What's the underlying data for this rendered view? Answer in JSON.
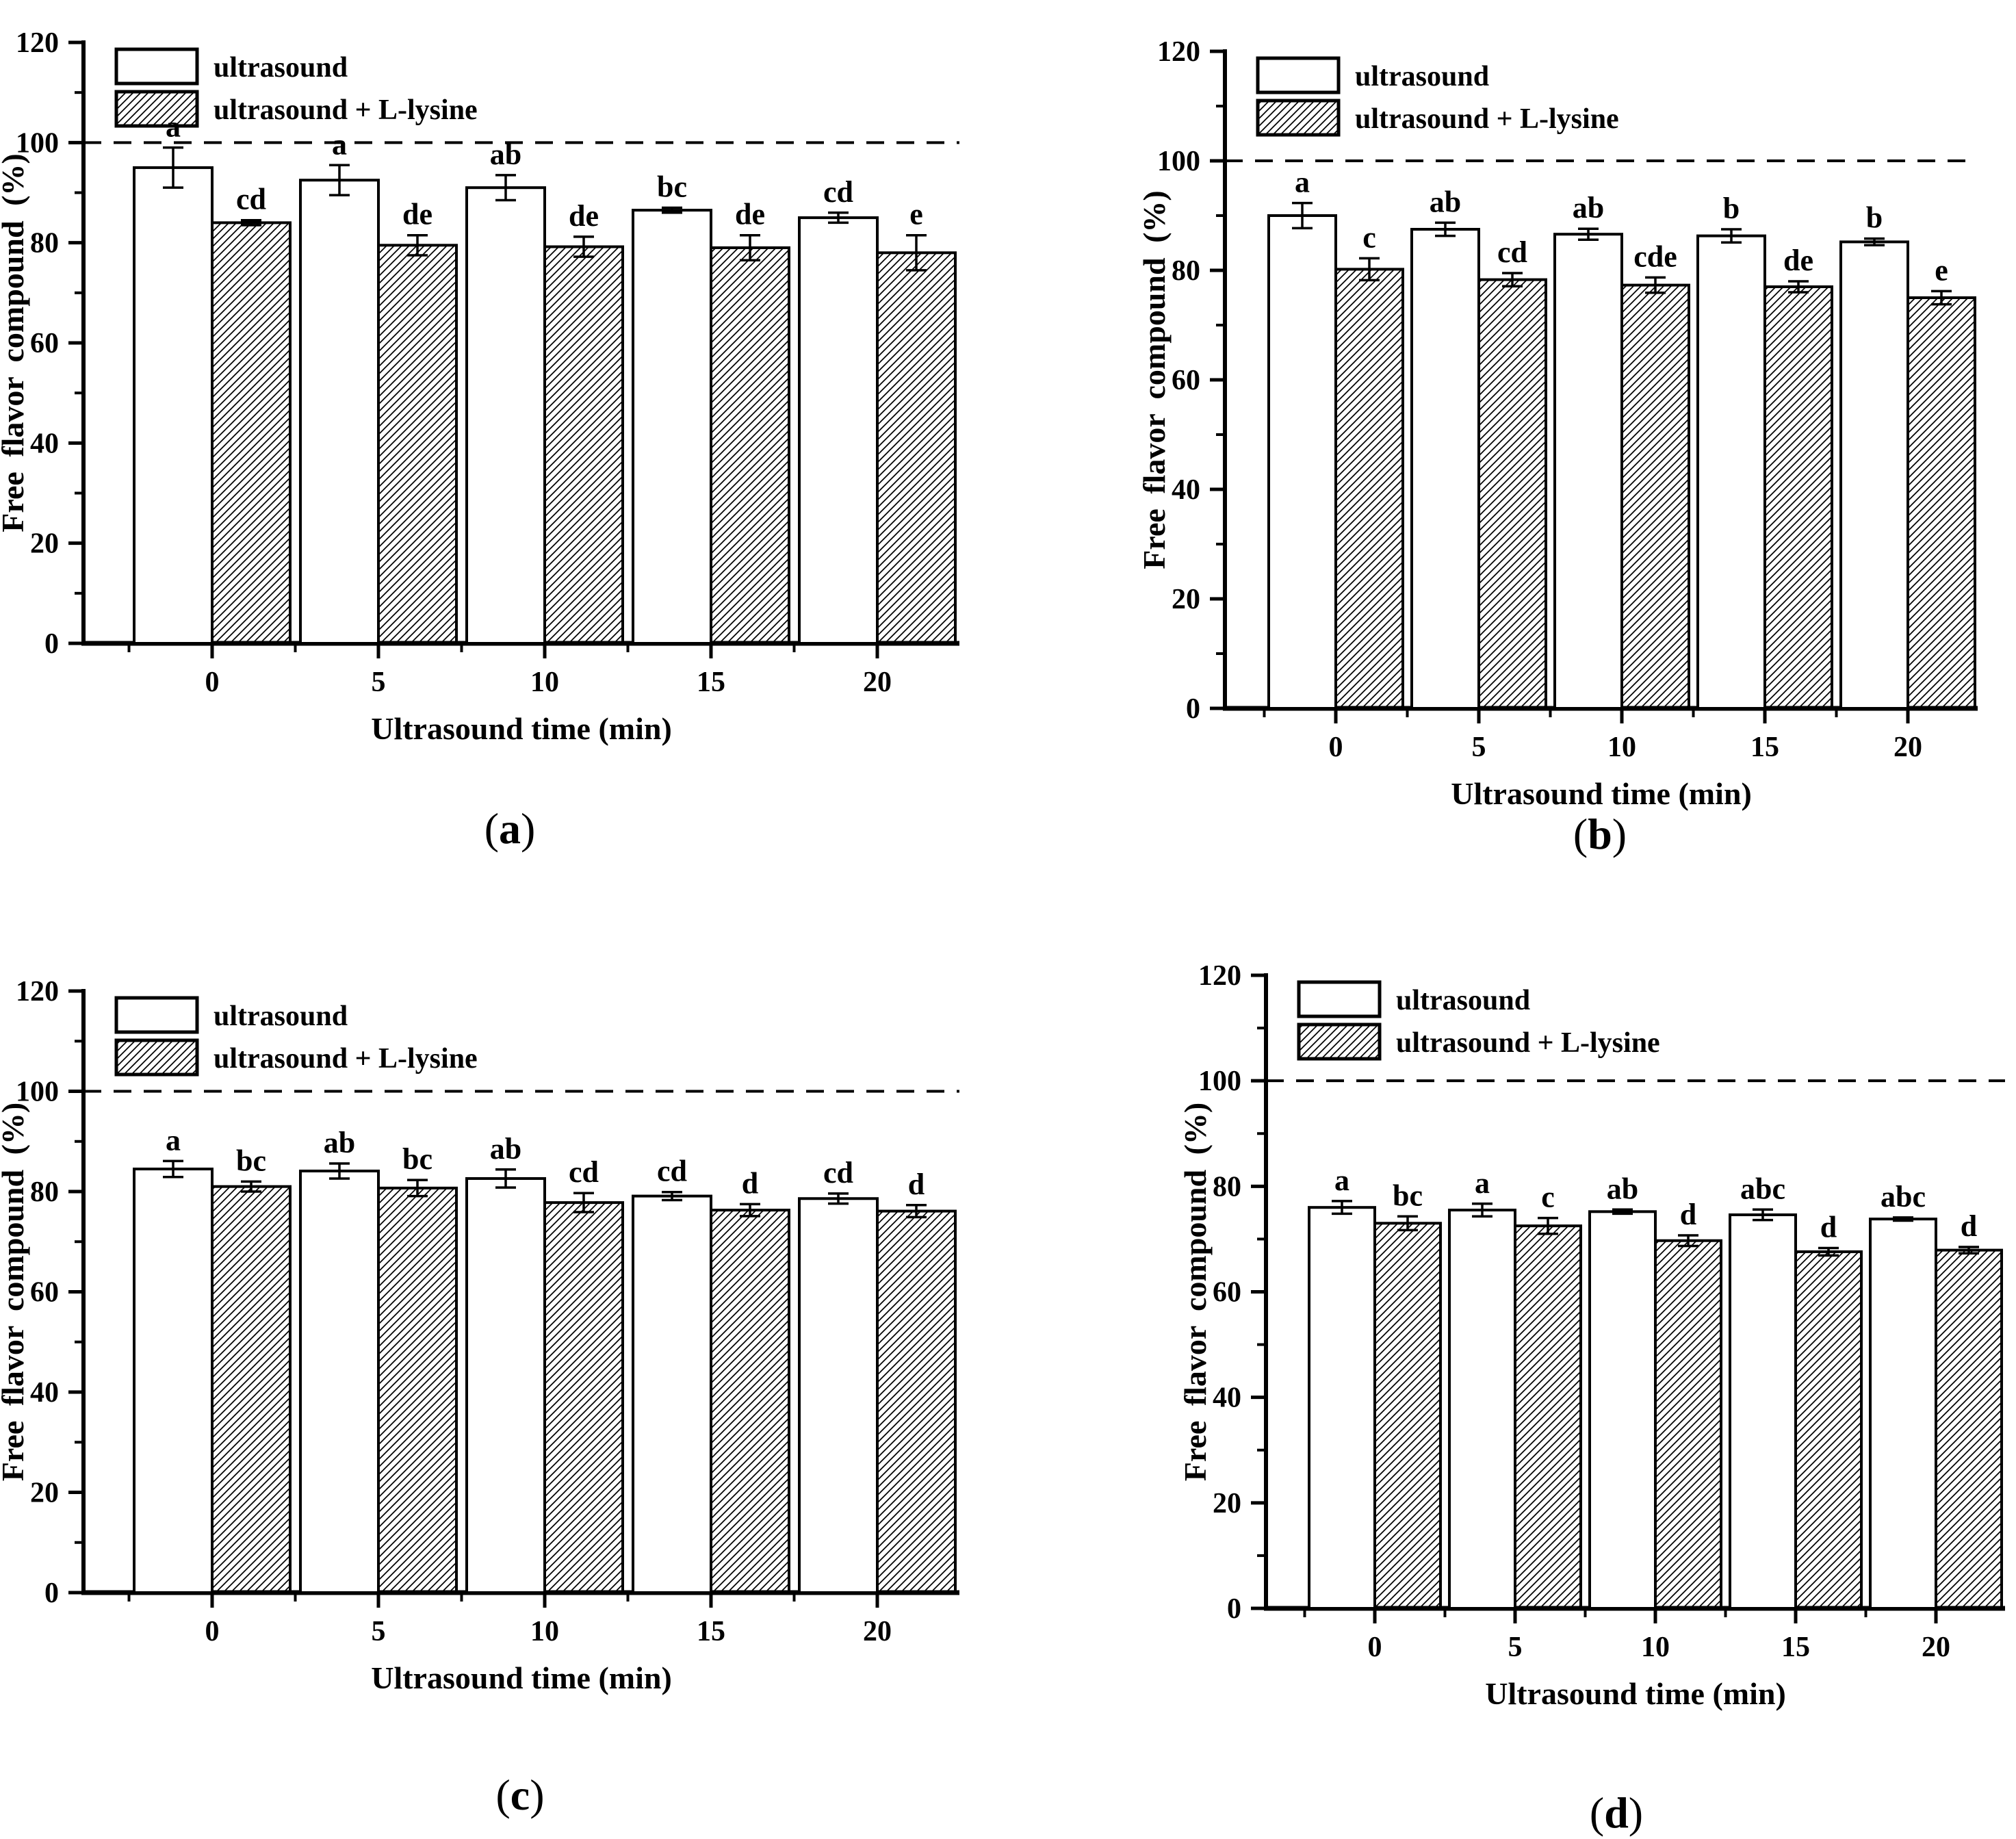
{
  "figure": {
    "background_color": "#ffffff",
    "ink_color": "#000000",
    "panel_captions": [
      "(a)",
      "(b)",
      "(c)",
      "(d)"
    ]
  },
  "legend": {
    "items": [
      {
        "label": "ultrasound",
        "swatch": "plain-white"
      },
      {
        "label": "ultrasound + L-lysine",
        "swatch": "diagonal-hatch"
      }
    ]
  },
  "chart_data": [
    {
      "id": "a",
      "caption_letter": "a",
      "type": "bar",
      "xlabel": "Ultrasound time (min)",
      "ylabel": "Free flavor compound (%)",
      "categories": [
        "0",
        "5",
        "10",
        "15",
        "20"
      ],
      "ylim": [
        0,
        120
      ],
      "yticks": [
        0,
        20,
        40,
        60,
        80,
        100,
        120
      ],
      "y_minor_ticks": [
        10,
        30,
        50,
        70,
        90,
        110
      ],
      "reference_line": 100,
      "grid": false,
      "legend_position": "top-left",
      "legend": [
        "ultrasound",
        "ultrasound + L-lysine"
      ],
      "series": [
        {
          "name": "ultrasound",
          "pattern": "plain",
          "values": [
            95,
            92.5,
            91,
            86.5,
            85
          ],
          "errors": [
            4,
            3,
            2.5,
            0.5,
            1
          ],
          "letters": [
            "a",
            "a",
            "ab",
            "bc",
            "cd"
          ]
        },
        {
          "name": "ultrasound + L-lysine",
          "pattern": "hatch",
          "values": [
            84,
            79.5,
            79.2,
            79,
            78
          ],
          "errors": [
            0.5,
            2,
            2,
            2.5,
            3.5
          ],
          "letters": [
            "cd",
            "de",
            "de",
            "de",
            "e"
          ]
        }
      ]
    },
    {
      "id": "b",
      "caption_letter": "b",
      "type": "bar",
      "xlabel": "Ultrasound time (min)",
      "ylabel": "Free flavor compound (%)",
      "categories": [
        "0",
        "5",
        "10",
        "15",
        "20"
      ],
      "ylim": [
        0,
        120
      ],
      "yticks": [
        0,
        20,
        40,
        60,
        80,
        100,
        120
      ],
      "y_minor_ticks": [
        10,
        30,
        50,
        70,
        90,
        110
      ],
      "reference_line": 100,
      "grid": false,
      "legend_position": "top-left",
      "legend": [
        "ultrasound",
        "ultrasound + L-lysine"
      ],
      "series": [
        {
          "name": "ultrasound",
          "pattern": "plain",
          "values": [
            90,
            87.5,
            86.6,
            86.3,
            85.2
          ],
          "errors": [
            2.3,
            1.2,
            1,
            1.2,
            0.6
          ],
          "letters": [
            "a",
            "ab",
            "ab",
            "b",
            "b"
          ]
        },
        {
          "name": "ultrasound + L-lysine",
          "pattern": "hatch",
          "values": [
            80.2,
            78.3,
            77.3,
            77,
            75
          ],
          "errors": [
            2,
            1.2,
            1.4,
            1,
            1.2
          ],
          "letters": [
            "c",
            "cd",
            "cde",
            "de",
            "e"
          ]
        }
      ]
    },
    {
      "id": "c",
      "caption_letter": "c",
      "type": "bar",
      "xlabel": "Ultrasound time (min)",
      "ylabel": "Free flavor compound (%)",
      "categories": [
        "0",
        "5",
        "10",
        "15",
        "20"
      ],
      "ylim": [
        0,
        120
      ],
      "yticks": [
        0,
        20,
        40,
        60,
        80,
        100,
        120
      ],
      "y_minor_ticks": [
        10,
        30,
        50,
        70,
        90,
        110
      ],
      "reference_line": 100,
      "grid": false,
      "legend_position": "top-left",
      "legend": [
        "ultrasound",
        "ultrasound + L-lysine"
      ],
      "series": [
        {
          "name": "ultrasound",
          "pattern": "plain",
          "values": [
            84.5,
            84.1,
            82.6,
            79.1,
            78.6
          ],
          "errors": [
            1.6,
            1.5,
            1.8,
            0.8,
            1
          ],
          "letters": [
            "a",
            "ab",
            "ab",
            "cd",
            "cd"
          ]
        },
        {
          "name": "ultrasound + L-lysine",
          "pattern": "hatch",
          "values": [
            81,
            80.7,
            77.8,
            76.3,
            76.1
          ],
          "errors": [
            1,
            1.6,
            1.9,
            1.2,
            1.2
          ],
          "letters": [
            "bc",
            "bc",
            "cd",
            "d",
            "d"
          ]
        }
      ]
    },
    {
      "id": "d",
      "caption_letter": "d",
      "type": "bar",
      "xlabel": "Ultrasound time (min)",
      "ylabel": "Free flavor compound (%)",
      "categories": [
        "0",
        "5",
        "10",
        "15",
        "20"
      ],
      "ylim": [
        0,
        120
      ],
      "yticks": [
        0,
        20,
        40,
        60,
        80,
        100,
        120
      ],
      "y_minor_ticks": [
        10,
        30,
        50,
        70,
        90,
        110
      ],
      "reference_line": 100,
      "grid": false,
      "legend_position": "top-left",
      "legend": [
        "ultrasound",
        "ultrasound + L-lysine"
      ],
      "series": [
        {
          "name": "ultrasound",
          "pattern": "plain",
          "values": [
            76,
            75.5,
            75.2,
            74.6,
            73.8
          ],
          "errors": [
            1.2,
            1.2,
            0.4,
            1,
            0.3
          ],
          "letters": [
            "a",
            "a",
            "ab",
            "abc",
            "abc"
          ]
        },
        {
          "name": "ultrasound + L-lysine",
          "pattern": "hatch",
          "values": [
            73,
            72.5,
            69.7,
            67.6,
            67.9
          ],
          "errors": [
            1.3,
            1.5,
            1,
            0.7,
            0.6
          ],
          "letters": [
            "bc",
            "c",
            "d",
            "d",
            "d"
          ]
        }
      ]
    }
  ]
}
